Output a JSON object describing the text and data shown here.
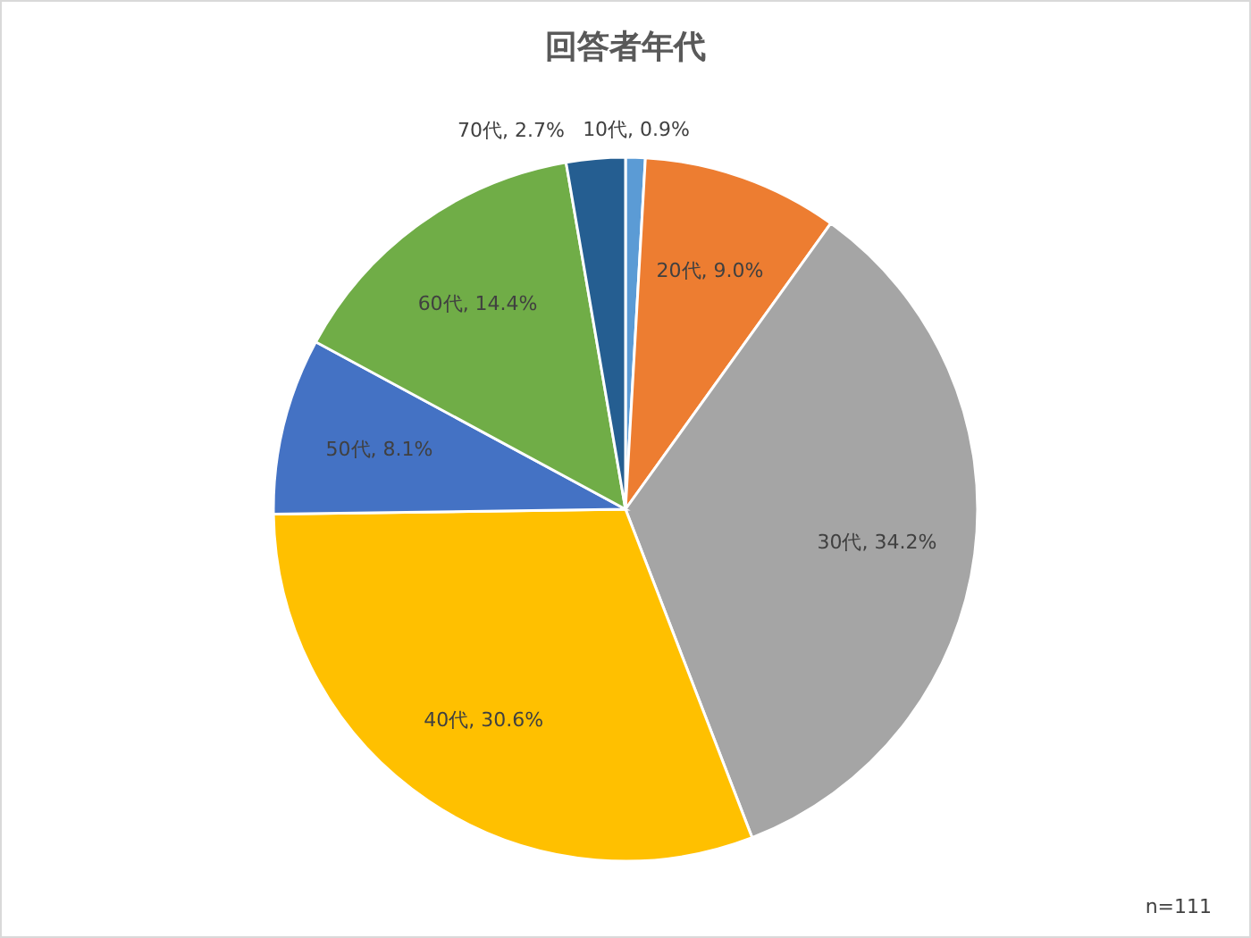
{
  "chart_data": {
    "type": "pie",
    "title": "回答者年代",
    "categories": [
      "10代",
      "20代",
      "30代",
      "40代",
      "50代",
      "60代",
      "70代"
    ],
    "values": [
      0.9,
      9.0,
      34.2,
      30.6,
      8.1,
      14.4,
      2.7
    ],
    "colors": [
      "#5b9bd5",
      "#ed7d31",
      "#a5a5a5",
      "#ffc000",
      "#4472c4",
      "#70ad47",
      "#255e91"
    ],
    "value_labels": [
      ", 0.9%",
      ", 9.0%",
      ", 34.2%",
      ", 30.6%",
      ", 8.1%",
      ", 14.4%",
      ", 2.7%"
    ],
    "annotations": [
      "n=111"
    ],
    "legend": false
  }
}
